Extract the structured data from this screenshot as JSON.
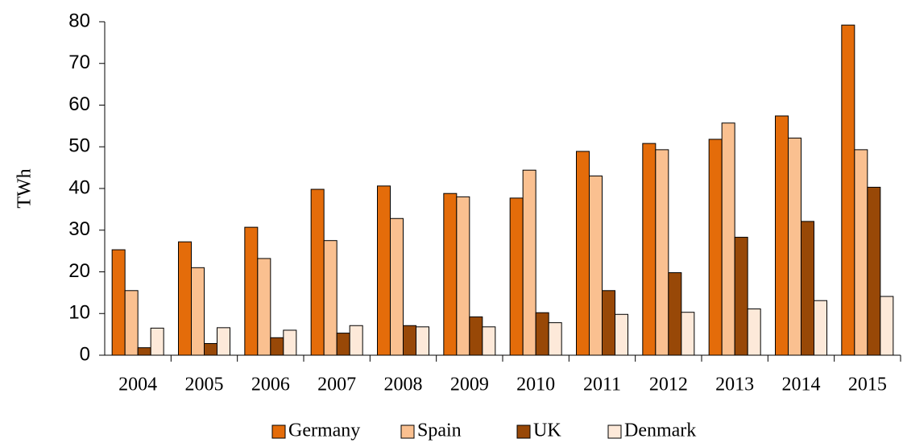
{
  "chart_data": {
    "type": "bar",
    "y_label": "TWh",
    "categories": [
      "2004",
      "2005",
      "2006",
      "2007",
      "2008",
      "2009",
      "2010",
      "2011",
      "2012",
      "2013",
      "2014",
      "2015"
    ],
    "series": [
      {
        "name": "Germany",
        "color": "#e46c0a",
        "values": [
          25.3,
          27.2,
          30.7,
          39.8,
          40.6,
          38.8,
          37.7,
          48.9,
          50.8,
          51.8,
          57.4,
          79.2
        ]
      },
      {
        "name": "Spain",
        "color": "#fac090",
        "values": [
          15.5,
          21.0,
          23.2,
          27.5,
          32.8,
          38.0,
          44.4,
          43.0,
          49.3,
          55.7,
          52.1,
          49.3
        ]
      },
      {
        "name": "UK",
        "color": "#984807",
        "values": [
          1.8,
          2.8,
          4.2,
          5.3,
          7.1,
          9.2,
          10.2,
          15.5,
          19.8,
          28.3,
          32.1,
          40.3
        ]
      },
      {
        "name": "Denmark",
        "color": "#fde9d9",
        "values": [
          6.5,
          6.6,
          6.0,
          7.1,
          6.8,
          6.8,
          7.8,
          9.8,
          10.3,
          11.1,
          13.1,
          14.1
        ]
      }
    ],
    "ylim": [
      0,
      80
    ],
    "yticks": [
      0,
      10,
      20,
      30,
      40,
      50,
      60,
      70,
      80
    ],
    "legend": "bottom"
  }
}
